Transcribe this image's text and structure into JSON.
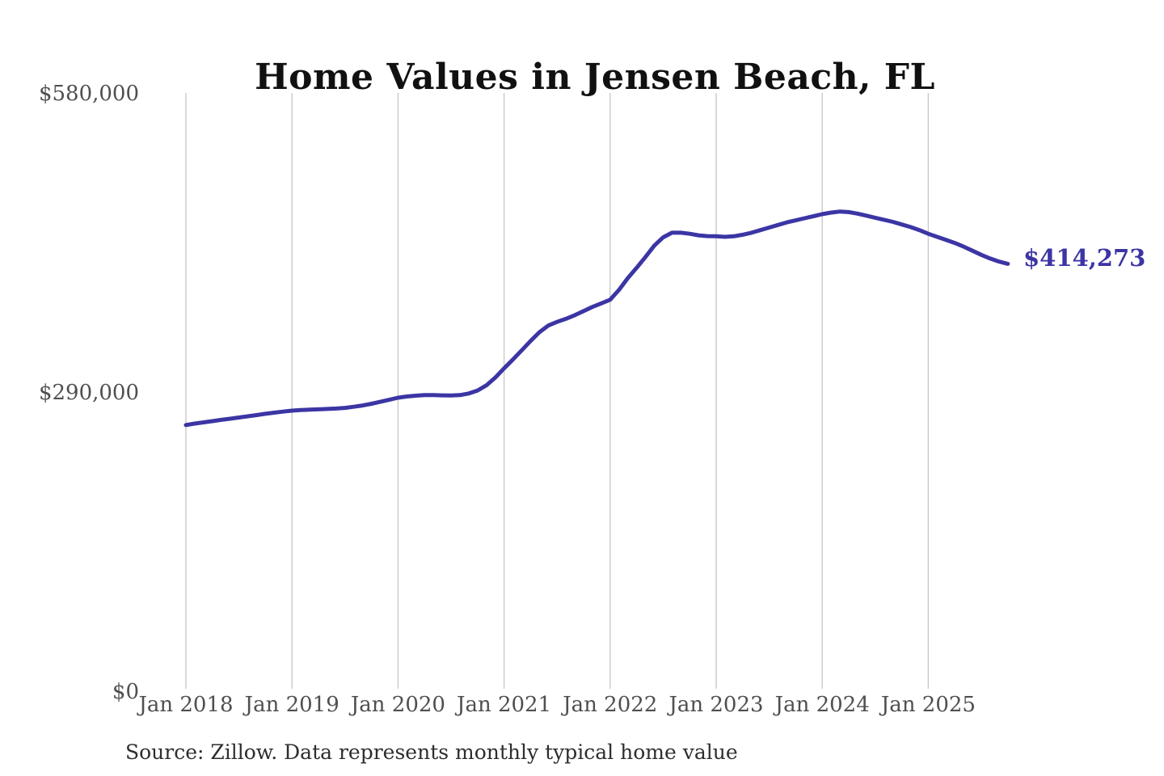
{
  "page": {
    "background": "#ffffff"
  },
  "header": {
    "title": "Home Values in Jensen Beach, FL"
  },
  "footer": {
    "source": "Source: Zillow. Data represents monthly typical home value"
  },
  "chart_data": {
    "type": "line",
    "title": "Home Values in Jensen Beach, FL",
    "xlabel": "",
    "ylabel": "",
    "ylim": [
      0,
      580000
    ],
    "grid": "vertical-only",
    "legend_position": "none",
    "y_ticks": [
      {
        "label": "$580,000",
        "value": 580000
      },
      {
        "label": "$290,000",
        "value": 290000
      },
      {
        "label": "$0",
        "value": 0
      }
    ],
    "x_ticks": [
      "Jan 2018",
      "Jan 2019",
      "Jan 2020",
      "Jan 2021",
      "Jan 2022",
      "Jan 2023",
      "Jan 2024",
      "Jan 2025"
    ],
    "series": [
      {
        "name": "Monthly typical home value",
        "x_start": "Jan 2018",
        "x_end": "Oct 2025",
        "x_interval": "month",
        "final_value": 414273,
        "final_value_label": "$414,273",
        "values": [
          258000,
          259400,
          260600,
          261800,
          263000,
          264100,
          265300,
          266500,
          267700,
          268900,
          270000,
          271000,
          272000,
          272600,
          272900,
          273200,
          273600,
          274000,
          274600,
          275700,
          277000,
          278600,
          280500,
          282500,
          284500,
          285700,
          286500,
          287000,
          287100,
          286800,
          286600,
          287000,
          288600,
          291500,
          296500,
          304000,
          313000,
          321500,
          330500,
          339500,
          348000,
          354500,
          358000,
          361000,
          364500,
          368500,
          372500,
          376000,
          379500,
          389000,
          400500,
          410500,
          421000,
          432000,
          440000,
          444500,
          444500,
          443500,
          442000,
          441200,
          441000,
          440500,
          441000,
          442500,
          444500,
          447000,
          449500,
          452000,
          454500,
          456500,
          458500,
          460500,
          462500,
          464000,
          465000,
          464500,
          463000,
          461000,
          459000,
          457000,
          455000,
          452500,
          450000,
          447000,
          443500,
          440500,
          437500,
          434500,
          431000,
          427000,
          423000,
          419500,
          416500,
          414273
        ]
      }
    ],
    "colors": {
      "line": "#3c35a4",
      "end_label": "#3c35a4",
      "grid": "#c9c9c9",
      "tick_text": "#4f4f4f",
      "title_text": "#111111",
      "source_text": "#2e2e2e"
    }
  }
}
